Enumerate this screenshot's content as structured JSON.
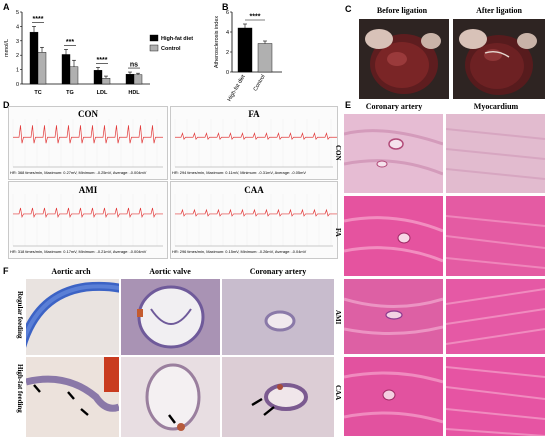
{
  "panels": {
    "A": "A",
    "B": "B",
    "C": "C",
    "D": "D",
    "E": "E",
    "F": "F"
  },
  "chart_data": [
    {
      "type": "bar",
      "panel": "A",
      "categories": [
        "TC",
        "TG",
        "LDL",
        "HDL"
      ],
      "series": [
        {
          "name": "High-fat diet",
          "values": [
            3.6,
            2.05,
            0.95,
            0.68
          ],
          "errors": [
            0.4,
            0.35,
            0.2,
            0.15
          ],
          "color": "#000000"
        },
        {
          "name": "Control",
          "values": [
            2.2,
            1.2,
            0.4,
            0.65
          ],
          "errors": [
            0.35,
            0.45,
            0.15,
            0.1
          ],
          "color": "#b0b0b0"
        }
      ],
      "ylabel": "mmol/L",
      "ylim": [
        0,
        5
      ],
      "yticks": [
        0,
        1,
        2,
        3,
        4,
        5
      ],
      "significance": [
        "****",
        "***",
        "****",
        "ns"
      ],
      "legend": "top-right"
    },
    {
      "type": "bar",
      "panel": "B",
      "categories": [
        "High-fat diet",
        "Control"
      ],
      "values": [
        4.4,
        2.85
      ],
      "errors": [
        0.4,
        0.25
      ],
      "colors": [
        "#000000",
        "#b0b0b0"
      ],
      "ylabel": "Atherosclerosis index",
      "ylim": [
        0,
        6
      ],
      "yticks": [
        0,
        2,
        4,
        6
      ],
      "significance": "****"
    }
  ],
  "panelC": {
    "before": "Before ligation",
    "after": "After ligation"
  },
  "panelD": {
    "labels": [
      "CON",
      "FA",
      "AMI",
      "CAA"
    ],
    "captions": [
      "HR: 368 times/min, Maximum: 0.27mV, Minimum: -0.25mV, Average: -0.004mV",
      "HR: 294 times/min, Maximum: 0.11mV, Minimum: -0.31mV, Average: -0.05mV",
      "HR: 318 times/min, Maximum: 0.17mV, Minimum: -0.21mV, Average: -0.004mV",
      "HR: 296 times/min, Maximum: 0.15mV, Minimum: -0.26mV, Average: -0.04mV"
    ]
  },
  "panelE": {
    "columns": [
      "Coronary artery",
      "Myocardium"
    ],
    "rows": [
      "CON",
      "FA",
      "AMI",
      "CAA"
    ]
  },
  "panelF": {
    "columns": [
      "Aortic arch",
      "Aortic valve",
      "Coronary artery"
    ],
    "rows": [
      "Regular feeding",
      "High-fat feeding"
    ]
  },
  "colors": {
    "ecg": "#e23b3b",
    "he_pink": "#e778b0",
    "ihc_purple": "#7b6aa8"
  }
}
